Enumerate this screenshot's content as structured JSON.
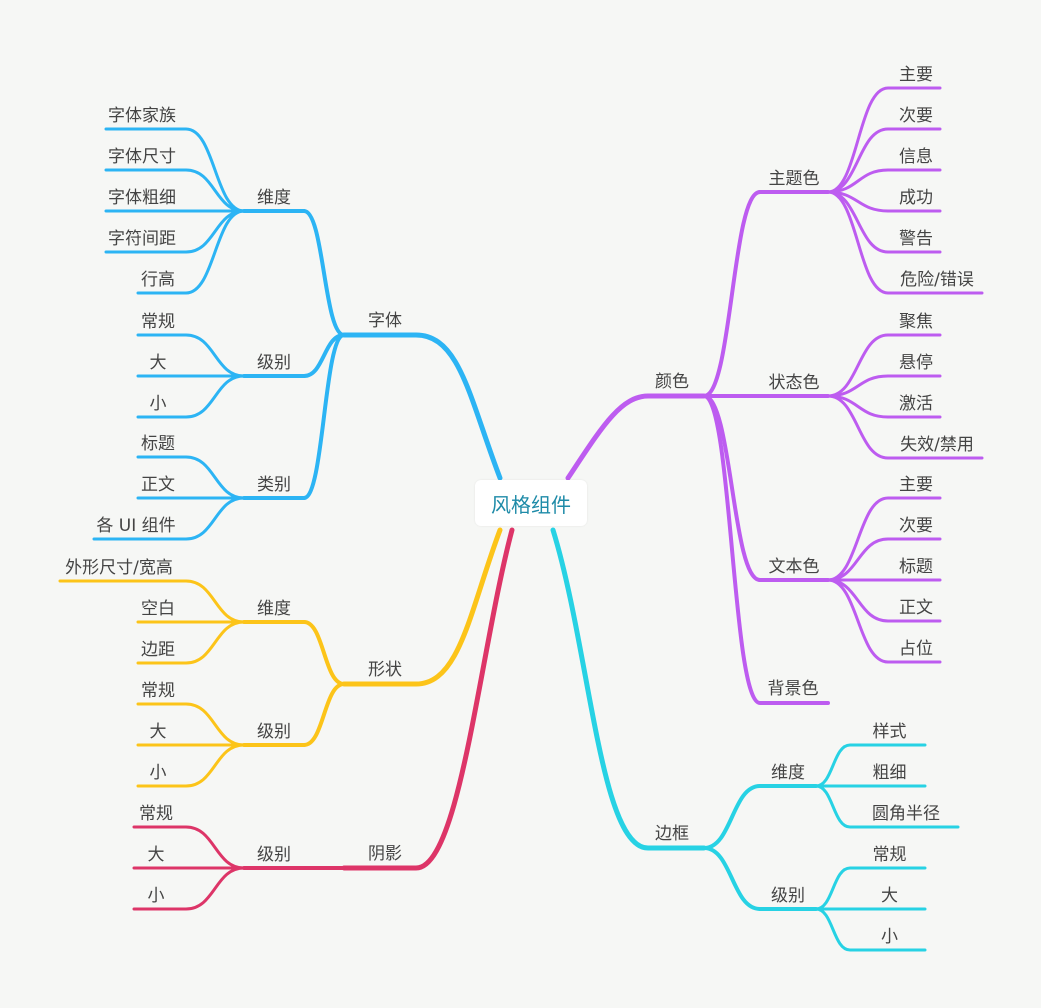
{
  "root": {
    "label": "风格组件",
    "color": "#1e8ba8"
  },
  "colors": {
    "font": "#2cb4f4",
    "shape": "#fcc419",
    "shadow": "#dd3568",
    "color": "#bd5cf0",
    "border": "#27d2e4",
    "text": "#444444",
    "background": "#f6f7f5"
  },
  "branches": {
    "font": {
      "label": "字体",
      "dimension": {
        "label": "维度",
        "items": [
          "字体家族",
          "字体尺寸",
          "字体粗细",
          "字符间距",
          "行高"
        ]
      },
      "level": {
        "label": "级别",
        "items": [
          "常规",
          "大",
          "小"
        ]
      },
      "category": {
        "label": "类别",
        "items": [
          "标题",
          "正文",
          "各 UI 组件"
        ]
      }
    },
    "shape": {
      "label": "形状",
      "dimension": {
        "label": "维度",
        "items": [
          "外形尺寸/宽高",
          "空白",
          "边距"
        ]
      },
      "level": {
        "label": "级别",
        "items": [
          "常规",
          "大",
          "小"
        ]
      }
    },
    "shadow": {
      "label": "阴影",
      "level": {
        "label": "级别",
        "items": [
          "常规",
          "大",
          "小"
        ]
      }
    },
    "color": {
      "label": "颜色",
      "theme": {
        "label": "主题色",
        "items": [
          "主要",
          "次要",
          "信息",
          "成功",
          "警告",
          "危险/错误"
        ]
      },
      "state": {
        "label": "状态色",
        "items": [
          "聚焦",
          "悬停",
          "激活",
          "失效/禁用"
        ]
      },
      "text": {
        "label": "文本色",
        "items": [
          "主要",
          "次要",
          "标题",
          "正文",
          "占位"
        ]
      },
      "background": {
        "label": "背景色"
      }
    },
    "border": {
      "label": "边框",
      "dimension": {
        "label": "维度",
        "items": [
          "样式",
          "粗细",
          "圆角半径"
        ]
      },
      "level": {
        "label": "级别",
        "items": [
          "常规",
          "大",
          "小"
        ]
      }
    }
  }
}
